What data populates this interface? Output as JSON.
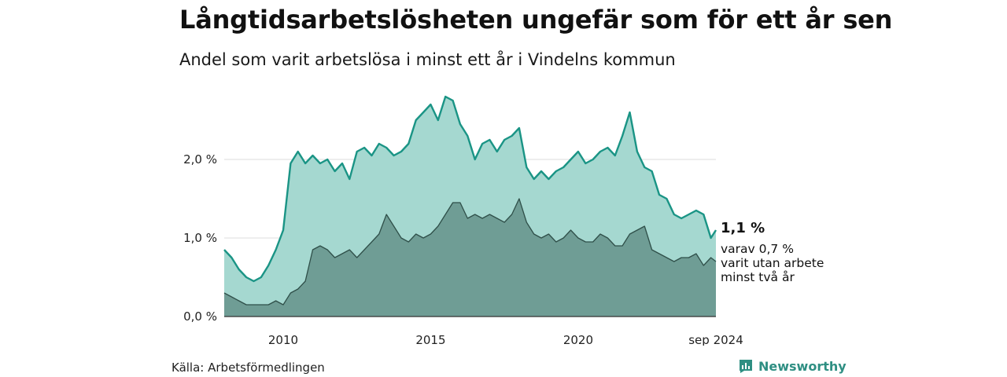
{
  "header": {
    "title": "Långtidsarbetslösheten ungefär som för ett år sen",
    "subtitle": "Andel som varit arbetslösa i minst ett år i Vindelns kommun"
  },
  "footer": {
    "source": "Källa: Arbetsförmedlingen",
    "brand": "Newsworthy"
  },
  "annotation": {
    "value": "1,1 %",
    "line1": "varav 0,7 %",
    "line2": "varit utan arbete",
    "line3": "minst två år"
  },
  "chart_data": {
    "type": "area",
    "title": "Långtidsarbetslösheten ungefär som för ett år sen",
    "subtitle": "Andel som varit arbetslösa i minst ett år i Vindelns kommun",
    "ylim": [
      0,
      2.9
    ],
    "y_ticks": [
      {
        "value": 0,
        "label": "0,0 %"
      },
      {
        "value": 1,
        "label": "1,0 %"
      },
      {
        "value": 2,
        "label": "2,0 %"
      }
    ],
    "x_ticks": [
      {
        "value": 2010,
        "label": "2010"
      },
      {
        "value": 2015,
        "label": "2015"
      },
      {
        "value": 2020,
        "label": "2020"
      },
      {
        "value": 2024.67,
        "label": "sep 2024"
      }
    ],
    "grid": true,
    "colors": {
      "total_fill": "#a5d8d0",
      "total_line": "#1a9485",
      "two_year_fill": "#6f9d95",
      "two_year_line": "#2f4f49"
    },
    "series": [
      {
        "key": "total",
        "x": [
          2008.0,
          2008.25,
          2008.5,
          2008.75,
          2009.0,
          2009.25,
          2009.5,
          2009.75,
          2010.0,
          2010.25,
          2010.5,
          2010.75,
          2011.0,
          2011.25,
          2011.5,
          2011.75,
          2012.0,
          2012.25,
          2012.5,
          2012.75,
          2013.0,
          2013.25,
          2013.5,
          2013.75,
          2014.0,
          2014.25,
          2014.5,
          2014.75,
          2015.0,
          2015.25,
          2015.5,
          2015.75,
          2016.0,
          2016.25,
          2016.5,
          2016.75,
          2017.0,
          2017.25,
          2017.5,
          2017.75,
          2018.0,
          2018.25,
          2018.5,
          2018.75,
          2019.0,
          2019.25,
          2019.5,
          2019.75,
          2020.0,
          2020.25,
          2020.5,
          2020.75,
          2021.0,
          2021.25,
          2021.5,
          2021.75,
          2022.0,
          2022.25,
          2022.5,
          2022.75,
          2023.0,
          2023.25,
          2023.5,
          2023.75,
          2024.0,
          2024.25,
          2024.5,
          2024.67
        ],
        "values": [
          0.85,
          0.75,
          0.6,
          0.5,
          0.45,
          0.5,
          0.65,
          0.85,
          1.1,
          1.95,
          2.1,
          1.95,
          2.05,
          1.95,
          2.0,
          1.85,
          1.95,
          1.75,
          2.1,
          2.15,
          2.05,
          2.2,
          2.15,
          2.05,
          2.1,
          2.2,
          2.5,
          2.6,
          2.7,
          2.5,
          2.8,
          2.75,
          2.45,
          2.3,
          2.0,
          2.2,
          2.25,
          2.1,
          2.25,
          2.3,
          2.4,
          1.9,
          1.75,
          1.85,
          1.75,
          1.85,
          1.9,
          2.0,
          2.1,
          1.95,
          2.0,
          2.1,
          2.15,
          2.05,
          2.3,
          2.6,
          2.1,
          1.9,
          1.85,
          1.55,
          1.5,
          1.3,
          1.25,
          1.3,
          1.35,
          1.3,
          1.0,
          1.1
        ]
      },
      {
        "key": "two_year",
        "x": [
          2008.0,
          2008.25,
          2008.5,
          2008.75,
          2009.0,
          2009.25,
          2009.5,
          2009.75,
          2010.0,
          2010.25,
          2010.5,
          2010.75,
          2011.0,
          2011.25,
          2011.5,
          2011.75,
          2012.0,
          2012.25,
          2012.5,
          2012.75,
          2013.0,
          2013.25,
          2013.5,
          2013.75,
          2014.0,
          2014.25,
          2014.5,
          2014.75,
          2015.0,
          2015.25,
          2015.5,
          2015.75,
          2016.0,
          2016.25,
          2016.5,
          2016.75,
          2017.0,
          2017.25,
          2017.5,
          2017.75,
          2018.0,
          2018.25,
          2018.5,
          2018.75,
          2019.0,
          2019.25,
          2019.5,
          2019.75,
          2020.0,
          2020.25,
          2020.5,
          2020.75,
          2021.0,
          2021.25,
          2021.5,
          2021.75,
          2022.0,
          2022.25,
          2022.5,
          2022.75,
          2023.0,
          2023.25,
          2023.5,
          2023.75,
          2024.0,
          2024.25,
          2024.5,
          2024.67
        ],
        "values": [
          0.3,
          0.25,
          0.2,
          0.15,
          0.15,
          0.15,
          0.15,
          0.2,
          0.15,
          0.3,
          0.35,
          0.45,
          0.85,
          0.9,
          0.85,
          0.75,
          0.8,
          0.85,
          0.75,
          0.85,
          0.95,
          1.05,
          1.3,
          1.15,
          1.0,
          0.95,
          1.05,
          1.0,
          1.05,
          1.15,
          1.3,
          1.45,
          1.45,
          1.25,
          1.3,
          1.25,
          1.3,
          1.25,
          1.2,
          1.3,
          1.5,
          1.2,
          1.05,
          1.0,
          1.05,
          0.95,
          1.0,
          1.1,
          1.0,
          0.95,
          0.95,
          1.05,
          1.0,
          0.9,
          0.9,
          1.05,
          1.1,
          1.15,
          0.85,
          0.8,
          0.75,
          0.7,
          0.75,
          0.75,
          0.8,
          0.65,
          0.75,
          0.7
        ]
      }
    ]
  }
}
